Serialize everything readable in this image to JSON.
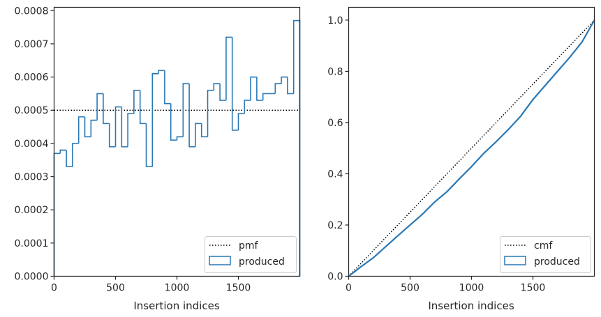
{
  "chart_data": [
    {
      "type": "histogram-step",
      "xlabel": "Insertion indices",
      "ylabel": "",
      "xlim": [
        0,
        2000
      ],
      "ylim": [
        0,
        0.00081
      ],
      "xticks": [
        0,
        500,
        1000,
        1500
      ],
      "xtick_labels": [
        "0",
        "500",
        "1000",
        "1500"
      ],
      "yticks": [
        0,
        0.0001,
        0.0002,
        0.0003,
        0.0004,
        0.0005,
        0.0006,
        0.0007,
        0.0008
      ],
      "ytick_labels": [
        "0.0000",
        "0.0001",
        "0.0002",
        "0.0003",
        "0.0004",
        "0.0005",
        "0.0006",
        "0.0007",
        "0.0008"
      ],
      "reference": {
        "name": "pmf",
        "value": 0.0005,
        "style": "dotted",
        "color": "#000000"
      },
      "series": [
        {
          "name": "produced",
          "color": "#2878b5",
          "bin_width": 50,
          "values": [
            0.00037,
            0.00038,
            0.00033,
            0.0004,
            0.00048,
            0.00042,
            0.00047,
            0.00055,
            0.00046,
            0.00039,
            0.00051,
            0.00039,
            0.00049,
            0.00056,
            0.00046,
            0.00033,
            0.00061,
            0.00062,
            0.00052,
            0.00041,
            0.00042,
            0.00058,
            0.00039,
            0.00046,
            0.00042,
            0.00056,
            0.00058,
            0.00053,
            0.00072,
            0.00044,
            0.00049,
            0.00053,
            0.0006,
            0.00053,
            0.00055,
            0.00055,
            0.00058,
            0.0006,
            0.00055,
            0.00077
          ]
        }
      ],
      "legend": {
        "placement": "lower-right",
        "entries": [
          "pmf",
          "produced"
        ]
      },
      "grid": false
    },
    {
      "type": "line",
      "xlabel": "Insertion indices",
      "ylabel": "",
      "xlim": [
        0,
        2000
      ],
      "ylim": [
        0,
        1.05
      ],
      "xticks": [
        0,
        500,
        1000,
        1500
      ],
      "xtick_labels": [
        "0",
        "500",
        "1000",
        "1500"
      ],
      "yticks": [
        0.0,
        0.2,
        0.4,
        0.6,
        0.8,
        1.0
      ],
      "ytick_labels": [
        "0.0",
        "0.2",
        "0.4",
        "0.6",
        "0.8",
        "1.0"
      ],
      "reference": {
        "name": "cmf",
        "x": [
          0,
          2000
        ],
        "y": [
          0,
          1.0
        ],
        "style": "dotted",
        "color": "#000000"
      },
      "series": [
        {
          "name": "produced",
          "color": "#2878b5",
          "x": [
            0,
            100,
            200,
            300,
            400,
            500,
            600,
            700,
            800,
            900,
            1000,
            1100,
            1200,
            1300,
            1400,
            1500,
            1600,
            1700,
            1800,
            1900,
            2000
          ],
          "y": [
            0,
            0.037,
            0.072,
            0.115,
            0.158,
            0.2,
            0.242,
            0.29,
            0.33,
            0.38,
            0.428,
            0.48,
            0.525,
            0.573,
            0.625,
            0.69,
            0.745,
            0.8,
            0.855,
            0.915,
            1.0
          ]
        }
      ],
      "legend": {
        "placement": "lower-right",
        "entries": [
          "cmf",
          "produced"
        ]
      },
      "grid": false
    }
  ]
}
